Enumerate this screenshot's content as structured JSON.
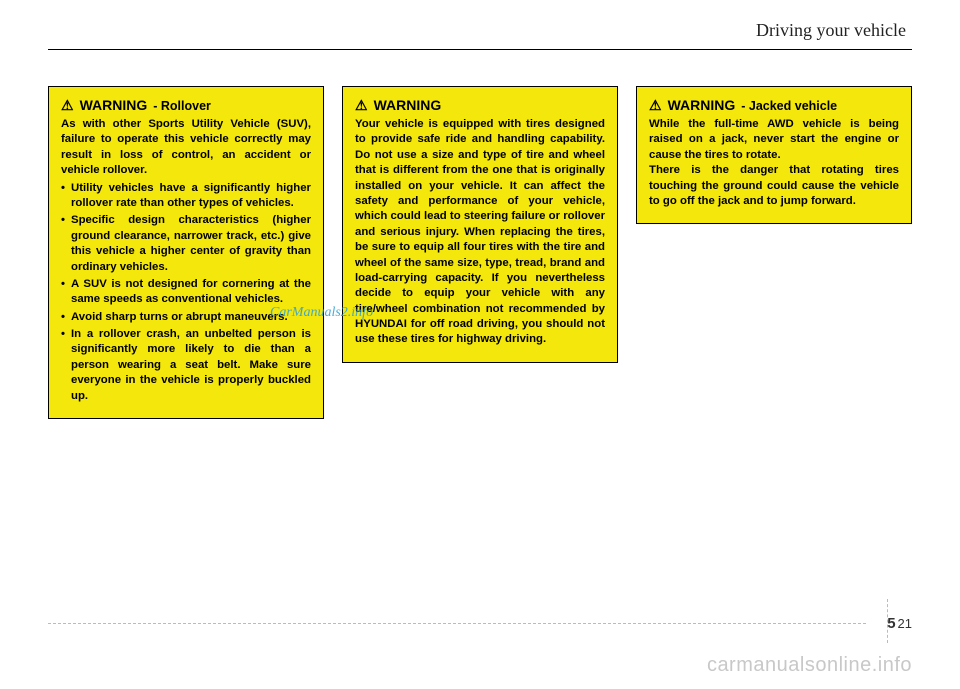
{
  "header": {
    "section_title": "Driving your vehicle"
  },
  "warnings": [
    {
      "icon": "⚠",
      "label": "WARNING",
      "sublabel": "- Rollover",
      "intro": "As with other Sports Utility Vehicle (SUV), failure to operate this vehicle correctly may result in loss of control, an accident or vehicle rollover.",
      "bullets": [
        "Utility vehicles have a significantly higher rollover rate than other types of vehicles.",
        "Specific design characteristics (higher ground clearance, narrower track, etc.) give this vehicle a higher center of gravity than ordinary vehicles.",
        "A SUV is not designed for cornering at the same speeds as conventional vehicles.",
        "Avoid sharp turns or abrupt maneuvers.",
        "In a rollover crash, an unbelted person is significantly more likely to die than a person wearing a seat belt.  Make sure everyone in the vehicle is properly buckled up."
      ]
    },
    {
      "icon": "⚠",
      "label": "WARNING",
      "sublabel": "",
      "intro": "Your vehicle is equipped with tires designed to provide safe ride and handling capability. Do not use a size and type of tire and wheel that is different from the one that is originally installed on your vehicle. It can affect the safety and performance of your vehicle, which could lead to steering failure or rollover and serious injury. When replacing the tires, be sure to equip all four tires with the tire and wheel of the same size, type, tread, brand and load-carrying capacity. If you nevertheless decide to equip your vehicle with any tire/wheel combination not recommended by HYUNDAI for off road driving, you should not use these tires for highway driving.",
      "bullets": []
    },
    {
      "icon": "⚠",
      "label": "WARNING",
      "sublabel": "- Jacked vehicle",
      "intro": "While the full-time AWD vehicle is being raised on a jack, never start the engine or cause the tires to rotate.\nThere is the danger that rotating tires touching the ground could cause the vehicle to go off the jack and to jump forward.",
      "bullets": []
    }
  ],
  "watermarks": {
    "mid": "CarManuals2.info",
    "bottom": "carmanualsonline.info"
  },
  "page_number": {
    "chapter": "5",
    "page": "21"
  },
  "colors": {
    "warning_bg": "#f4e70c",
    "watermark_mid": "#2a9fd6",
    "watermark_bottom": "#c8c8c8"
  }
}
